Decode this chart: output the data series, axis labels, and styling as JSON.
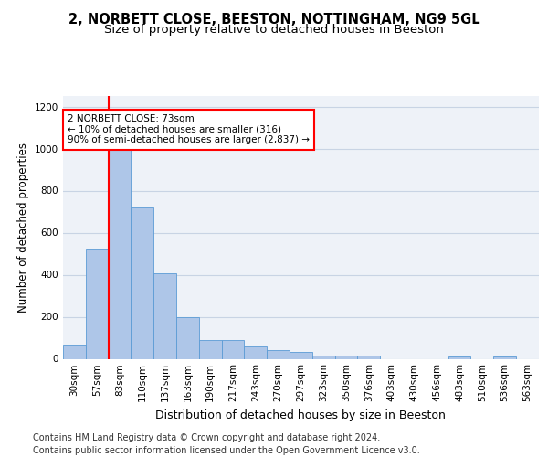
{
  "title1": "2, NORBETT CLOSE, BEESTON, NOTTINGHAM, NG9 5GL",
  "title2": "Size of property relative to detached houses in Beeston",
  "xlabel": "Distribution of detached houses by size in Beeston",
  "ylabel": "Number of detached properties",
  "categories": [
    "30sqm",
    "57sqm",
    "83sqm",
    "110sqm",
    "137sqm",
    "163sqm",
    "190sqm",
    "217sqm",
    "243sqm",
    "270sqm",
    "297sqm",
    "323sqm",
    "350sqm",
    "376sqm",
    "403sqm",
    "430sqm",
    "456sqm",
    "483sqm",
    "510sqm",
    "536sqm",
    "563sqm"
  ],
  "values": [
    65,
    525,
    1000,
    720,
    405,
    198,
    90,
    90,
    60,
    40,
    33,
    17,
    17,
    17,
    0,
    0,
    0,
    10,
    0,
    10,
    0
  ],
  "bar_color": "#aec6e8",
  "bar_edge_color": "#5b9bd5",
  "grid_color": "#c8d4e4",
  "bg_color": "#eef2f8",
  "vline_color": "red",
  "vline_x": 1.5,
  "annotation_text": "2 NORBETT CLOSE: 73sqm\n← 10% of detached houses are smaller (316)\n90% of semi-detached houses are larger (2,837) →",
  "annotation_box_color": "white",
  "annotation_box_edge": "red",
  "footer": "Contains HM Land Registry data © Crown copyright and database right 2024.\nContains public sector information licensed under the Open Government Licence v3.0.",
  "ylim": [
    0,
    1250
  ],
  "yticks": [
    0,
    200,
    400,
    600,
    800,
    1000,
    1200
  ],
  "title1_fontsize": 10.5,
  "title2_fontsize": 9.5,
  "ylabel_fontsize": 8.5,
  "xlabel_fontsize": 9,
  "tick_fontsize": 7.5,
  "annotation_fontsize": 7.5,
  "footer_fontsize": 7
}
